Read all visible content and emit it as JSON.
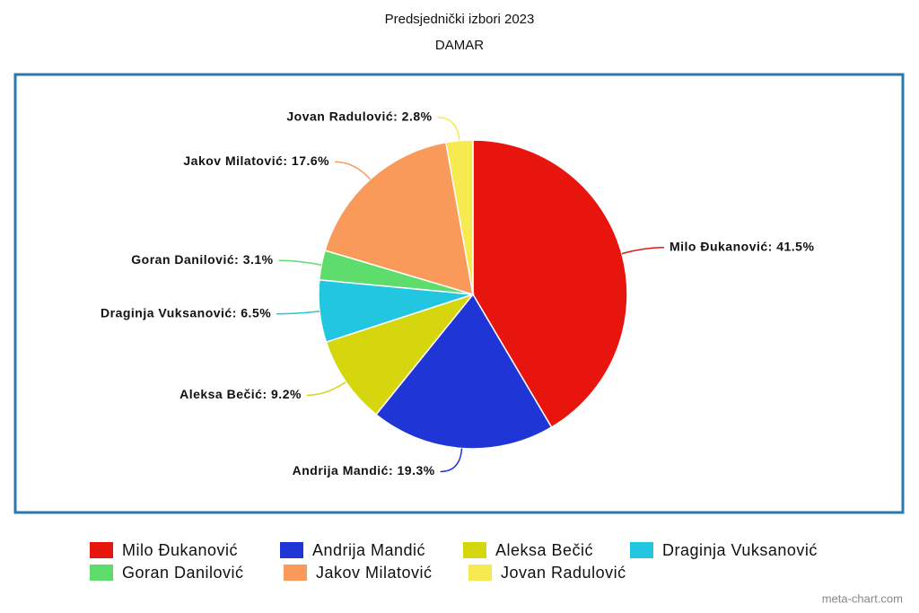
{
  "chart_data": {
    "type": "pie",
    "title": "Predsjednički izbori 2023",
    "subtitle": "DAMAR",
    "categories": [
      "Milo Đukanović",
      "Andrija Mandić",
      "Aleksa Bečić",
      "Draginja Vuksanović",
      "Goran Danilović",
      "Jakov Milatović",
      "Jovan Radulović"
    ],
    "values": [
      41.5,
      19.3,
      9.2,
      6.5,
      3.1,
      17.6,
      2.8
    ],
    "value_labels": [
      "Milo Đukanović: 41.5%",
      "Andrija Mandić: 19.3%",
      "Aleksa Bečić: 9.2%",
      "Draginja Vuksanović: 6.5%",
      "Goran Danilović: 3.1%",
      "Jakov Milatović: 17.6%",
      "Jovan Radulović: 2.8%"
    ],
    "colors": [
      "#e8140e",
      "#1f35d6",
      "#d6d60f",
      "#22c6e0",
      "#5edc6c",
      "#f99a5b",
      "#f6ea50"
    ],
    "credit": "meta-chart.com"
  }
}
